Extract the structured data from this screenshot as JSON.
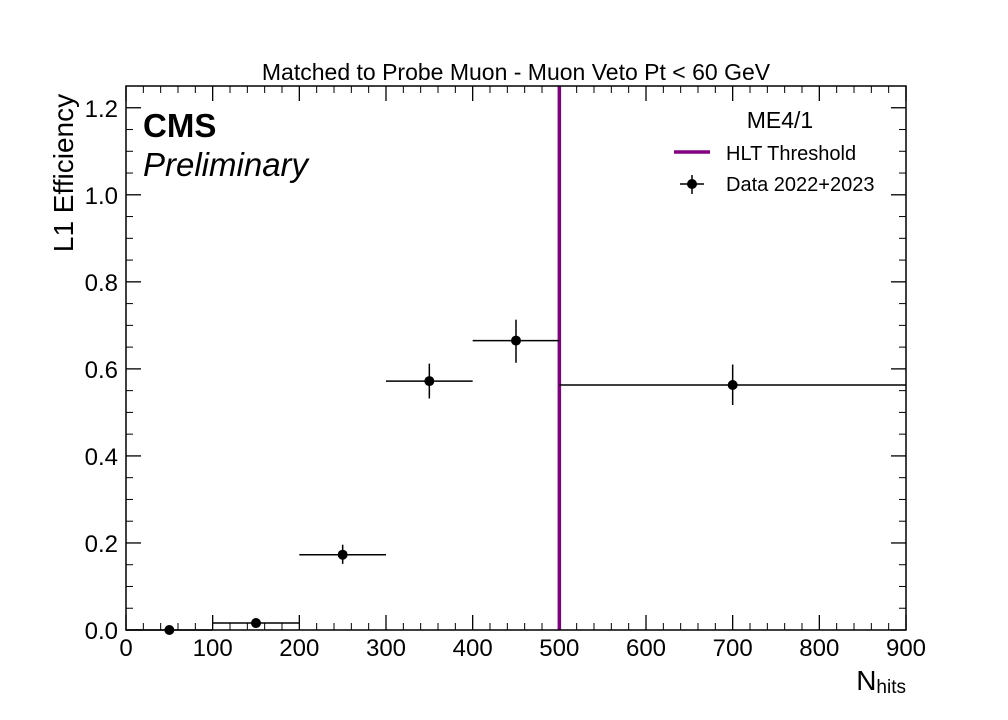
{
  "chart_data": {
    "type": "scatter",
    "title": "Matched to Probe Muon - Muon Veto Pt < 60 GeV",
    "experiment_label": "CMS",
    "status_label": "Preliminary",
    "xlabel_main": "N",
    "xlabel_sub": "hits",
    "ylabel": "L1 Efficiency",
    "xlim": [
      0,
      900
    ],
    "ylim": [
      0,
      1.25
    ],
    "x_ticks": [
      0,
      100,
      200,
      300,
      400,
      500,
      600,
      700,
      800,
      900
    ],
    "y_ticks": [
      0.0,
      0.2,
      0.4,
      0.6,
      0.8,
      1.0,
      1.2
    ],
    "x_tick_labels": [
      "0",
      "100",
      "200",
      "300",
      "400",
      "500",
      "600",
      "700",
      "800",
      "900"
    ],
    "y_tick_labels": [
      "0.0",
      "0.2",
      "0.4",
      "0.6",
      "0.8",
      "1.0",
      "1.2"
    ],
    "grid": false,
    "legend": {
      "title": "ME4/1",
      "placement": "top-right",
      "entries": [
        "HLT Threshold",
        "Data 2022+2023"
      ]
    },
    "threshold": {
      "name": "HLT Threshold",
      "x": 500,
      "color": "#800080"
    },
    "series": [
      {
        "name": "Data 2022+2023",
        "color": "#000000",
        "points": [
          {
            "x": 50,
            "xlo": 0,
            "xhi": 100,
            "y": 0.0,
            "ylo": 0.0,
            "yhi": 0.004
          },
          {
            "x": 150,
            "xlo": 100,
            "xhi": 200,
            "y": 0.016,
            "ylo": 0.009,
            "yhi": 0.026
          },
          {
            "x": 250,
            "xlo": 200,
            "xhi": 300,
            "y": 0.173,
            "ylo": 0.152,
            "yhi": 0.196
          },
          {
            "x": 350,
            "xlo": 300,
            "xhi": 400,
            "y": 0.572,
            "ylo": 0.532,
            "yhi": 0.612
          },
          {
            "x": 450,
            "xlo": 400,
            "xhi": 500,
            "y": 0.665,
            "ylo": 0.614,
            "yhi": 0.713
          },
          {
            "x": 700,
            "xlo": 500,
            "xhi": 900,
            "y": 0.563,
            "ylo": 0.517,
            "yhi": 0.61
          }
        ]
      }
    ]
  }
}
